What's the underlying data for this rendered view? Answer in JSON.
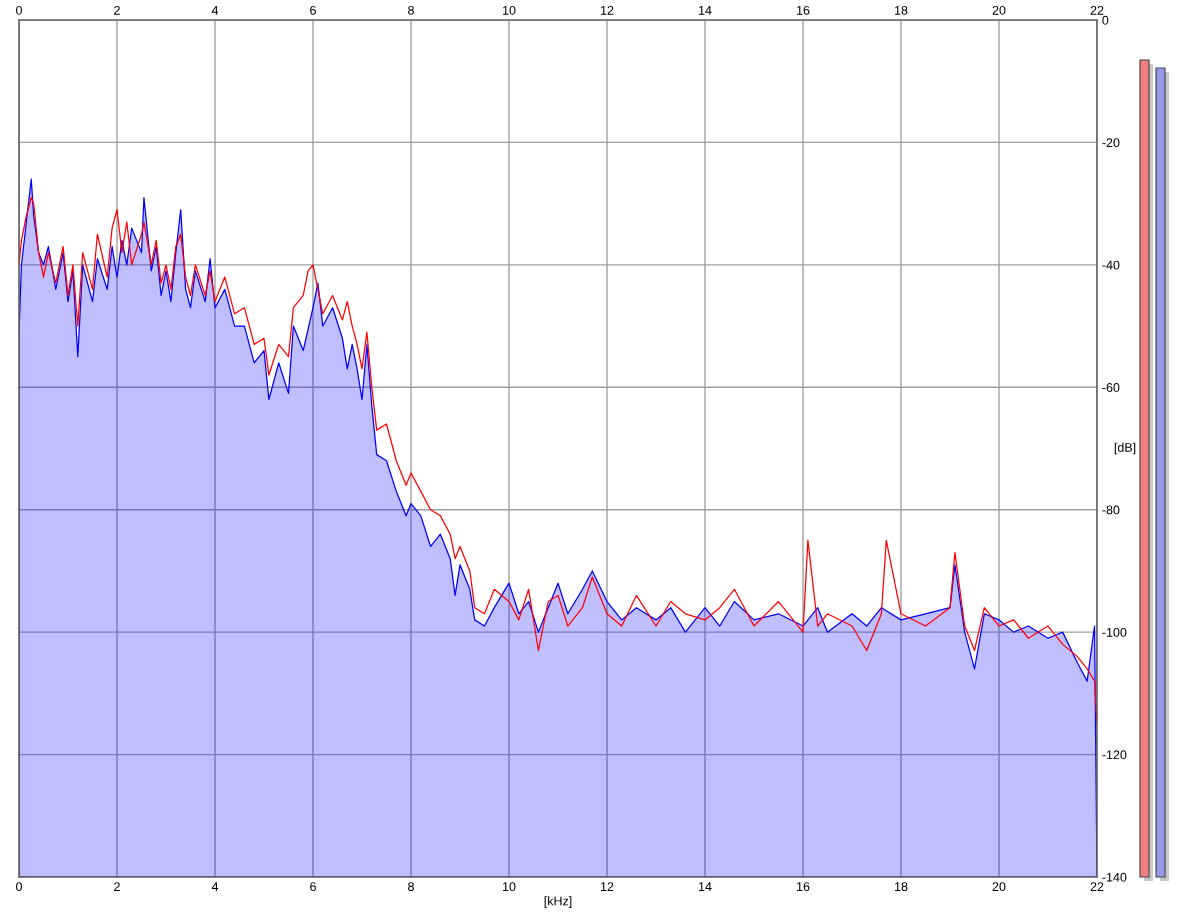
{
  "chart_data": {
    "type": "area",
    "xlabel": "[kHz]",
    "ylabel": "[dB]",
    "xlim": [
      0,
      22
    ],
    "xticks": [
      0,
      2,
      4,
      6,
      8,
      10,
      12,
      14,
      16,
      18,
      20,
      22
    ],
    "x2lim": [
      0,
      22
    ],
    "x2ticks": [
      0,
      2,
      4,
      6,
      8,
      10,
      12,
      14,
      16,
      18,
      20,
      22
    ],
    "ylim": [
      -140,
      0
    ],
    "yticks": [
      -140,
      -120,
      -100,
      -80,
      -60,
      -40,
      -20,
      0
    ],
    "grid": true,
    "series": [
      {
        "type": "line",
        "color": "#ff0000",
        "x": [
          0,
          0.05,
          0.15,
          0.25,
          0.3,
          0.4,
          0.5,
          0.6,
          0.75,
          0.9,
          1.0,
          1.1,
          1.2,
          1.3,
          1.5,
          1.6,
          1.8,
          1.9,
          2.0,
          2.1,
          2.2,
          2.3,
          2.5,
          2.55,
          2.7,
          2.8,
          2.9,
          3.0,
          3.1,
          3.2,
          3.3,
          3.4,
          3.5,
          3.6,
          3.8,
          3.9,
          4.0,
          4.2,
          4.4,
          4.6,
          4.8,
          5.0,
          5.1,
          5.3,
          5.5,
          5.6,
          5.8,
          5.9,
          6.0,
          6.1,
          6.2,
          6.4,
          6.6,
          6.7,
          6.8,
          6.9,
          7.0,
          7.1,
          7.2,
          7.3,
          7.5,
          7.7,
          7.9,
          8.0,
          8.2,
          8.4,
          8.6,
          8.8,
          8.9,
          9.0,
          9.2,
          9.3,
          9.5,
          9.7,
          10.0,
          10.2,
          10.4,
          10.6,
          10.8,
          11.0,
          11.2,
          11.5,
          11.7,
          12.0,
          12.3,
          12.6,
          13.0,
          13.3,
          13.6,
          14.0,
          14.3,
          14.6,
          15.0,
          15.5,
          16.0,
          16.1,
          16.3,
          16.5,
          17.0,
          17.3,
          17.6,
          17.7,
          18.0,
          18.5,
          19.0,
          19.1,
          19.3,
          19.5,
          19.7,
          20.0,
          20.3,
          20.6,
          21.0,
          21.3,
          21.6,
          21.8,
          21.95,
          22.0
        ],
        "values": [
          -40,
          -36,
          -32,
          -29,
          -30,
          -38,
          -42,
          -38,
          -43,
          -37,
          -45,
          -40,
          -50,
          -38,
          -44,
          -35,
          -42,
          -34,
          -31,
          -38,
          -33,
          -40,
          -35,
          -33,
          -40,
          -36,
          -43,
          -40,
          -44,
          -37,
          -35,
          -42,
          -45,
          -40,
          -45,
          -41,
          -46,
          -42,
          -48,
          -47,
          -53,
          -52,
          -58,
          -53,
          -55,
          -47,
          -45,
          -41,
          -40,
          -44,
          -48,
          -45,
          -49,
          -46,
          -50,
          -53,
          -57,
          -51,
          -60,
          -67,
          -66,
          -72,
          -76,
          -74,
          -77,
          -80,
          -81,
          -84,
          -88,
          -86,
          -90,
          -96,
          -97,
          -93,
          -95,
          -98,
          -93,
          -103,
          -95,
          -94,
          -99,
          -96,
          -91,
          -97,
          -99,
          -94,
          -99,
          -95,
          -97,
          -98,
          -96,
          -93,
          -99,
          -95,
          -100,
          -85,
          -99,
          -97,
          -99,
          -103,
          -97,
          -85,
          -97,
          -99,
          -96,
          -87,
          -99,
          -103,
          -96,
          -99,
          -98,
          -101,
          -99,
          -102,
          -104,
          -106,
          -108,
          -115
        ]
      },
      {
        "color": "#0000ff",
        "x": [
          0,
          0,
          0.05,
          0.15,
          0.25,
          0.3,
          0.4,
          0.5,
          0.6,
          0.75,
          0.9,
          1.0,
          1.1,
          1.2,
          1.3,
          1.5,
          1.6,
          1.8,
          1.9,
          2.0,
          2.1,
          2.2,
          2.3,
          2.5,
          2.55,
          2.7,
          2.8,
          2.9,
          3.0,
          3.1,
          3.2,
          3.3,
          3.4,
          3.5,
          3.6,
          3.8,
          3.9,
          4.0,
          4.2,
          4.4,
          4.6,
          4.8,
          5.0,
          5.1,
          5.3,
          5.5,
          5.6,
          5.8,
          6.0,
          6.1,
          6.2,
          6.4,
          6.6,
          6.7,
          6.8,
          6.9,
          7.0,
          7.1,
          7.2,
          7.3,
          7.5,
          7.7,
          7.9,
          8.0,
          8.2,
          8.4,
          8.6,
          8.8,
          8.9,
          9.0,
          9.2,
          9.3,
          9.5,
          9.7,
          10.0,
          10.2,
          10.4,
          10.6,
          10.8,
          11.0,
          11.2,
          11.5,
          11.7,
          12.0,
          12.3,
          12.6,
          13.0,
          13.3,
          13.6,
          14.0,
          14.3,
          14.6,
          15.0,
          15.5,
          16.0,
          16.3,
          16.5,
          17.0,
          17.3,
          17.6,
          18.0,
          18.5,
          19.0,
          19.1,
          19.3,
          19.5,
          19.7,
          20.0,
          20.3,
          20.6,
          21.0,
          21.3,
          21.6,
          21.8,
          21.95,
          22.0
        ],
        "values": [
          -140,
          -51,
          -40,
          -33,
          -26,
          -32,
          -38,
          -40,
          -37,
          -44,
          -38,
          -46,
          -41,
          -55,
          -40,
          -46,
          -39,
          -44,
          -37,
          -42,
          -36,
          -40,
          -34,
          -38,
          -29,
          -41,
          -37,
          -45,
          -41,
          -46,
          -38,
          -31,
          -44,
          -47,
          -41,
          -46,
          -39,
          -47,
          -44,
          -50,
          -50,
          -56,
          -54,
          -62,
          -56,
          -61,
          -50,
          -54,
          -47,
          -43,
          -50,
          -47,
          -52,
          -57,
          -53,
          -57,
          -62,
          -53,
          -63,
          -71,
          -72,
          -77,
          -81,
          -79,
          -81,
          -86,
          -84,
          -88,
          -94,
          -89,
          -93,
          -98,
          -99,
          -96,
          -92,
          -97,
          -95,
          -100,
          -96,
          -92,
          -97,
          -93,
          -90,
          -95,
          -98,
          -96,
          -98,
          -96,
          -100,
          -96,
          -99,
          -95,
          -98,
          -97,
          -99,
          -96,
          -100,
          -97,
          -99,
          -96,
          -98,
          -97,
          -96,
          -89,
          -100,
          -106,
          -97,
          -98,
          -100,
          -99,
          -101,
          -100,
          -105,
          -108,
          -99,
          -140
        ]
      }
    ]
  }
}
